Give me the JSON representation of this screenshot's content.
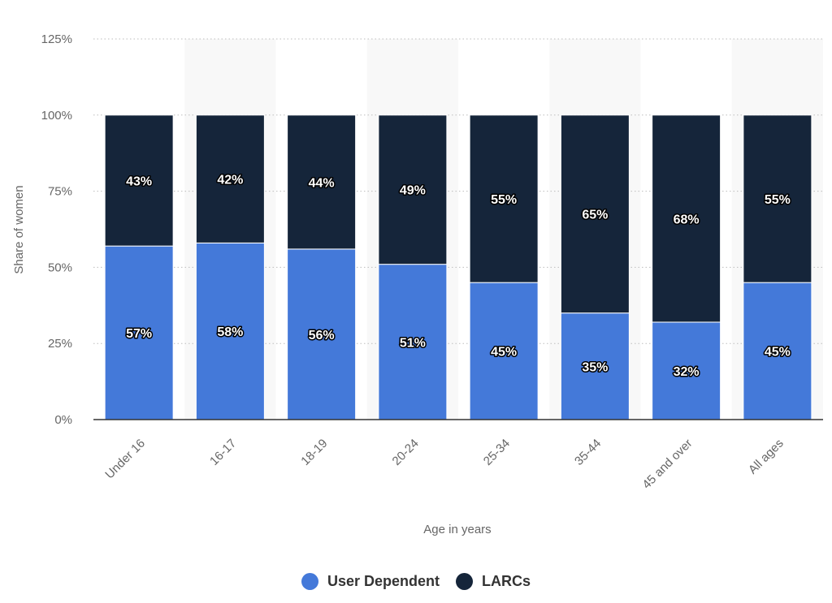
{
  "chart_data": {
    "type": "bar",
    "stacked": true,
    "categories": [
      "Under 16",
      "16-17",
      "18-19",
      "20-24",
      "25-34",
      "35-44",
      "45 and over",
      "All ages"
    ],
    "series": [
      {
        "name": "User Dependent",
        "color": "#4479d9",
        "values": [
          57,
          58,
          56,
          51,
          45,
          35,
          32,
          45
        ],
        "labels": [
          "57%",
          "58%",
          "56%",
          "51%",
          "45%",
          "35%",
          "32%",
          "45%"
        ]
      },
      {
        "name": "LARCs",
        "color": "#15253a",
        "values": [
          43,
          42,
          44,
          49,
          55,
          65,
          68,
          55
        ],
        "labels": [
          "43%",
          "42%",
          "44%",
          "49%",
          "55%",
          "65%",
          "68%",
          "55%"
        ]
      }
    ],
    "xlabel": "Age in years",
    "ylabel": "Share of women",
    "ylim": [
      0,
      125
    ],
    "yticks": [
      "0%",
      "25%",
      "50%",
      "75%",
      "100%",
      "125%"
    ],
    "grid": true,
    "legend_position": "bottom-center"
  }
}
